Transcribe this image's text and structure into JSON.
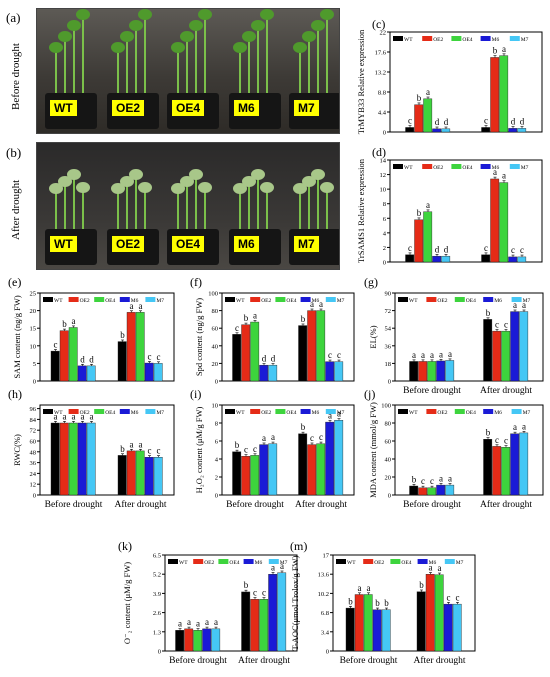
{
  "figure": {
    "photos": [
      {
        "panel": "(a)",
        "side_label": "Before drought",
        "pots": [
          "WT",
          "OE2",
          "OE4",
          "M6",
          "M7"
        ]
      },
      {
        "panel": "(b)",
        "side_label": "After drought",
        "pots": [
          "WT",
          "OE2",
          "OE4",
          "M6",
          "M7"
        ]
      }
    ]
  },
  "chart_data": [
    {
      "id": "c",
      "panel": "(c)",
      "type": "bar",
      "categories": [
        "",
        ""
      ],
      "ylabel": "TrMYB33 Relative expression",
      "ylim": [
        0,
        22
      ],
      "yticks": [
        0,
        4.4,
        8.8,
        13.2,
        17.6,
        22
      ],
      "series": [
        {
          "name": "WT",
          "values": [
            1,
            1
          ],
          "letters": [
            "c",
            "c"
          ]
        },
        {
          "name": "OE2",
          "values": [
            6,
            16.4
          ],
          "letters": [
            "b",
            "b"
          ]
        },
        {
          "name": "OE4",
          "values": [
            7.3,
            16.8
          ],
          "letters": [
            "a",
            "a"
          ]
        },
        {
          "name": "M6",
          "values": [
            0.7,
            0.8
          ],
          "letters": [
            "d",
            "d"
          ]
        },
        {
          "name": "M7",
          "values": [
            0.7,
            0.8
          ],
          "letters": [
            "d",
            "d"
          ]
        }
      ]
    },
    {
      "id": "d",
      "panel": "(d)",
      "type": "bar",
      "categories": [
        "",
        ""
      ],
      "ylabel": "TrSAMS1 Relative expression",
      "ylim": [
        0,
        14
      ],
      "yticks": [
        0,
        2,
        4,
        6,
        8,
        10,
        12,
        14
      ],
      "series": [
        {
          "name": "WT",
          "values": [
            1,
            1
          ],
          "letters": [
            "c",
            "c"
          ]
        },
        {
          "name": "OE2",
          "values": [
            5.8,
            11.4
          ],
          "letters": [
            "b",
            "a"
          ]
        },
        {
          "name": "OE4",
          "values": [
            6.9,
            10.9
          ],
          "letters": [
            "a",
            "a"
          ]
        },
        {
          "name": "M6",
          "values": [
            0.8,
            0.7
          ],
          "letters": [
            "d",
            "c"
          ]
        },
        {
          "name": "M7",
          "values": [
            0.8,
            0.7
          ],
          "letters": [
            "d",
            "c"
          ]
        }
      ]
    },
    {
      "id": "e",
      "panel": "(e)",
      "type": "bar",
      "categories": [
        "",
        ""
      ],
      "ylabel": "SAM content (ng/g FW)",
      "ylim": [
        0,
        25
      ],
      "yticks": [
        0,
        5,
        10,
        15,
        20,
        25
      ],
      "series": [
        {
          "name": "WT",
          "values": [
            8.5,
            11.2
          ],
          "letters": [
            "c",
            "b"
          ]
        },
        {
          "name": "OE2",
          "values": [
            14.3,
            19.5
          ],
          "letters": [
            "b",
            "a"
          ]
        },
        {
          "name": "OE4",
          "values": [
            15.2,
            19.5
          ],
          "letters": [
            "a",
            "a"
          ]
        },
        {
          "name": "M6",
          "values": [
            4.3,
            5.1
          ],
          "letters": [
            "d",
            "c"
          ]
        },
        {
          "name": "M7",
          "values": [
            4.3,
            5
          ],
          "letters": [
            "d",
            "c"
          ]
        }
      ]
    },
    {
      "id": "f",
      "panel": "(f)",
      "type": "bar",
      "categories": [
        "",
        ""
      ],
      "ylabel": "Spd content (ng/g FW)",
      "ylim": [
        0,
        100
      ],
      "yticks": [
        0,
        20,
        40,
        60,
        80,
        100
      ],
      "series": [
        {
          "name": "WT",
          "values": [
            53,
            63
          ],
          "letters": [
            "c",
            "b"
          ]
        },
        {
          "name": "OE2",
          "values": [
            64,
            80
          ],
          "letters": [
            "b",
            "a"
          ]
        },
        {
          "name": "OE4",
          "values": [
            67,
            80
          ],
          "letters": [
            "a",
            "a"
          ]
        },
        {
          "name": "M6",
          "values": [
            18,
            22
          ],
          "letters": [
            "d",
            "c"
          ]
        },
        {
          "name": "M7",
          "values": [
            18,
            22
          ],
          "letters": [
            "d",
            "c"
          ]
        }
      ]
    },
    {
      "id": "g",
      "panel": "(g)",
      "type": "bar",
      "categories": [
        "Before drought",
        "After drought"
      ],
      "ylabel": "EL(%)",
      "ylim": [
        0,
        90
      ],
      "yticks": [
        0,
        18,
        36,
        54,
        72,
        90
      ],
      "series": [
        {
          "name": "WT",
          "values": [
            20,
            63
          ],
          "letters": [
            "a",
            "b"
          ]
        },
        {
          "name": "OE2",
          "values": [
            20,
            51
          ],
          "letters": [
            "a",
            "c"
          ]
        },
        {
          "name": "OE4",
          "values": [
            20,
            51
          ],
          "letters": [
            "a",
            "c"
          ]
        },
        {
          "name": "M6",
          "values": [
            20.5,
            71
          ],
          "letters": [
            "a",
            "a"
          ]
        },
        {
          "name": "M7",
          "values": [
            21,
            71
          ],
          "letters": [
            "a",
            "a"
          ]
        }
      ]
    },
    {
      "id": "h",
      "panel": "(h)",
      "type": "bar",
      "categories": [
        "Before drought",
        "After drought"
      ],
      "ylabel": "RWC(%)",
      "ylim": [
        0,
        100
      ],
      "yticks": [
        0,
        12,
        24,
        36,
        48,
        60,
        72,
        84,
        96
      ],
      "series": [
        {
          "name": "WT",
          "values": [
            80,
            44
          ],
          "letters": [
            "a",
            "b"
          ]
        },
        {
          "name": "OE2",
          "values": [
            80,
            49
          ],
          "letters": [
            "a",
            "a"
          ]
        },
        {
          "name": "OE4",
          "values": [
            80,
            49
          ],
          "letters": [
            "a",
            "a"
          ]
        },
        {
          "name": "M6",
          "values": [
            80,
            42
          ],
          "letters": [
            "a",
            "c"
          ]
        },
        {
          "name": "M7",
          "values": [
            80,
            42
          ],
          "letters": [
            "a",
            "c"
          ]
        }
      ]
    },
    {
      "id": "i",
      "panel": "(i)",
      "type": "bar",
      "categories": [
        "Before drought",
        "After drought"
      ],
      "ylabel": "H₂O₂ content (μM/g FW)",
      "ylim": [
        0,
        10
      ],
      "yticks": [
        0,
        2,
        4,
        6,
        8,
        10
      ],
      "series": [
        {
          "name": "WT",
          "values": [
            4.8,
            6.8
          ],
          "letters": [
            "b",
            "b"
          ]
        },
        {
          "name": "OE2",
          "values": [
            4.3,
            5.6
          ],
          "letters": [
            "c",
            "c"
          ]
        },
        {
          "name": "OE4",
          "values": [
            4.4,
            5.7
          ],
          "letters": [
            "c",
            "c"
          ]
        },
        {
          "name": "M6",
          "values": [
            5.6,
            8.1
          ],
          "letters": [
            "a",
            "a"
          ]
        },
        {
          "name": "M7",
          "values": [
            5.7,
            8.3
          ],
          "letters": [
            "a",
            "a"
          ]
        }
      ]
    },
    {
      "id": "j",
      "panel": "(j)",
      "type": "bar",
      "categories": [
        "Before drought",
        "After drought"
      ],
      "ylabel": "MDA content (mmol/g FW)",
      "ylim": [
        0,
        100
      ],
      "yticks": [
        0,
        20,
        40,
        60,
        80,
        100
      ],
      "series": [
        {
          "name": "WT",
          "values": [
            10,
            62
          ],
          "letters": [
            "b",
            "b"
          ]
        },
        {
          "name": "OE2",
          "values": [
            8,
            54
          ],
          "letters": [
            "c",
            "c"
          ]
        },
        {
          "name": "OE4",
          "values": [
            8,
            53
          ],
          "letters": [
            "c",
            "c"
          ]
        },
        {
          "name": "M6",
          "values": [
            11,
            68
          ],
          "letters": [
            "a",
            "a"
          ]
        },
        {
          "name": "M7",
          "values": [
            11,
            69
          ],
          "letters": [
            "a",
            "a"
          ]
        }
      ]
    },
    {
      "id": "k",
      "panel": "(k)",
      "type": "bar",
      "categories": [
        "Before drought",
        "After drought"
      ],
      "ylabel": "O⁻₂ content (μM/g FW)",
      "ylim": [
        0,
        6.5
      ],
      "yticks": [
        0,
        1.3,
        2.6,
        3.9,
        5.2,
        6.5
      ],
      "series": [
        {
          "name": "WT",
          "values": [
            1.4,
            4
          ],
          "letters": [
            "a",
            "b"
          ]
        },
        {
          "name": "OE2",
          "values": [
            1.5,
            3.5
          ],
          "letters": [
            "a",
            "c"
          ]
        },
        {
          "name": "OE4",
          "values": [
            1.4,
            3.5
          ],
          "letters": [
            "a",
            "c"
          ]
        },
        {
          "name": "M6",
          "values": [
            1.5,
            5.2
          ],
          "letters": [
            "a",
            "a"
          ]
        },
        {
          "name": "M7",
          "values": [
            1.5,
            5.3
          ],
          "letters": [
            "a",
            "a"
          ]
        }
      ]
    },
    {
      "id": "m",
      "panel": "(m)",
      "type": "bar",
      "categories": [
        "Before drought",
        "After drought"
      ],
      "ylabel": "T-AOC(μmol Trolox/g FW)",
      "ylim": [
        0,
        17
      ],
      "yticks": [
        0,
        3.4,
        6.8,
        10.2,
        13.6,
        17
      ],
      "series": [
        {
          "name": "WT",
          "values": [
            7.6,
            10.5
          ],
          "letters": [
            "b",
            "b"
          ]
        },
        {
          "name": "OE2",
          "values": [
            10,
            13.6
          ],
          "letters": [
            "a",
            "a"
          ]
        },
        {
          "name": "OE4",
          "values": [
            10,
            13.5
          ],
          "letters": [
            "a",
            "a"
          ]
        },
        {
          "name": "M6",
          "values": [
            7.3,
            8.3
          ],
          "letters": [
            "b",
            "c"
          ]
        },
        {
          "name": "M7",
          "values": [
            7.3,
            8.3
          ],
          "letters": [
            "b",
            "c"
          ]
        }
      ]
    }
  ],
  "colors": {
    "WT": "#000000",
    "OE2": "#e52b17",
    "OE4": "#3dd43d",
    "M6": "#1a1ad6",
    "M7": "#45c7f5"
  }
}
